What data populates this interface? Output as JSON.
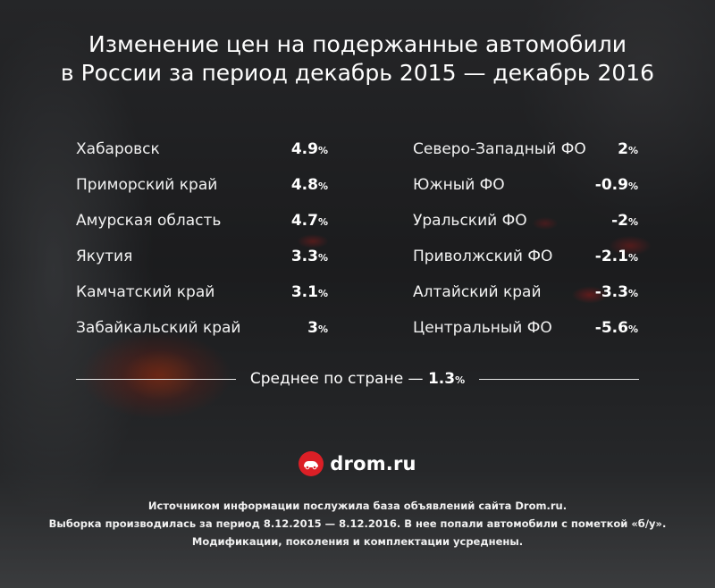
{
  "title": {
    "line1": "Изменение цен на подержанные автомобили",
    "line2": "в России за период декабрь 2015 — декабрь 2016"
  },
  "left_regions": [
    {
      "name": "Хабаровск",
      "value": "4.9",
      "unit": "%"
    },
    {
      "name": "Приморский край",
      "value": "4.8",
      "unit": "%"
    },
    {
      "name": "Амурская область",
      "value": "4.7",
      "unit": "%"
    },
    {
      "name": "Якутия",
      "value": "3.3",
      "unit": "%"
    },
    {
      "name": "Камчатский край",
      "value": "3.1",
      "unit": "%"
    },
    {
      "name": "Забайкальский край",
      "value": "3",
      "unit": "%"
    }
  ],
  "right_regions": [
    {
      "name": "Северо-Западный ФО",
      "value": "2",
      "unit": "%"
    },
    {
      "name": "Южный ФО",
      "value": "-0.9",
      "unit": "%"
    },
    {
      "name": "Уральский ФО",
      "value": "-2",
      "unit": "%"
    },
    {
      "name": "Приволжский ФО",
      "value": "-2.1",
      "unit": "%"
    },
    {
      "name": "Алтайский край",
      "value": "-3.3",
      "unit": "%"
    },
    {
      "name": "Центральный ФО",
      "value": "-5.6",
      "unit": "%"
    }
  ],
  "average": {
    "label": "Среднее по стране —",
    "value": "1.3",
    "unit": "%"
  },
  "logo": {
    "text": "drom.ru",
    "color": "#db1f26",
    "icon": "drom-car-icon"
  },
  "footer": {
    "line1": "Источником информации послужила база объявлений сайта Drom.ru.",
    "line2": "Выборка производилась за период 8.12.2015 — 8.12.2016. В нее попали автомобили с пометкой «б/у».",
    "line3": "Модификации, поколения и комплектации усреднены."
  }
}
